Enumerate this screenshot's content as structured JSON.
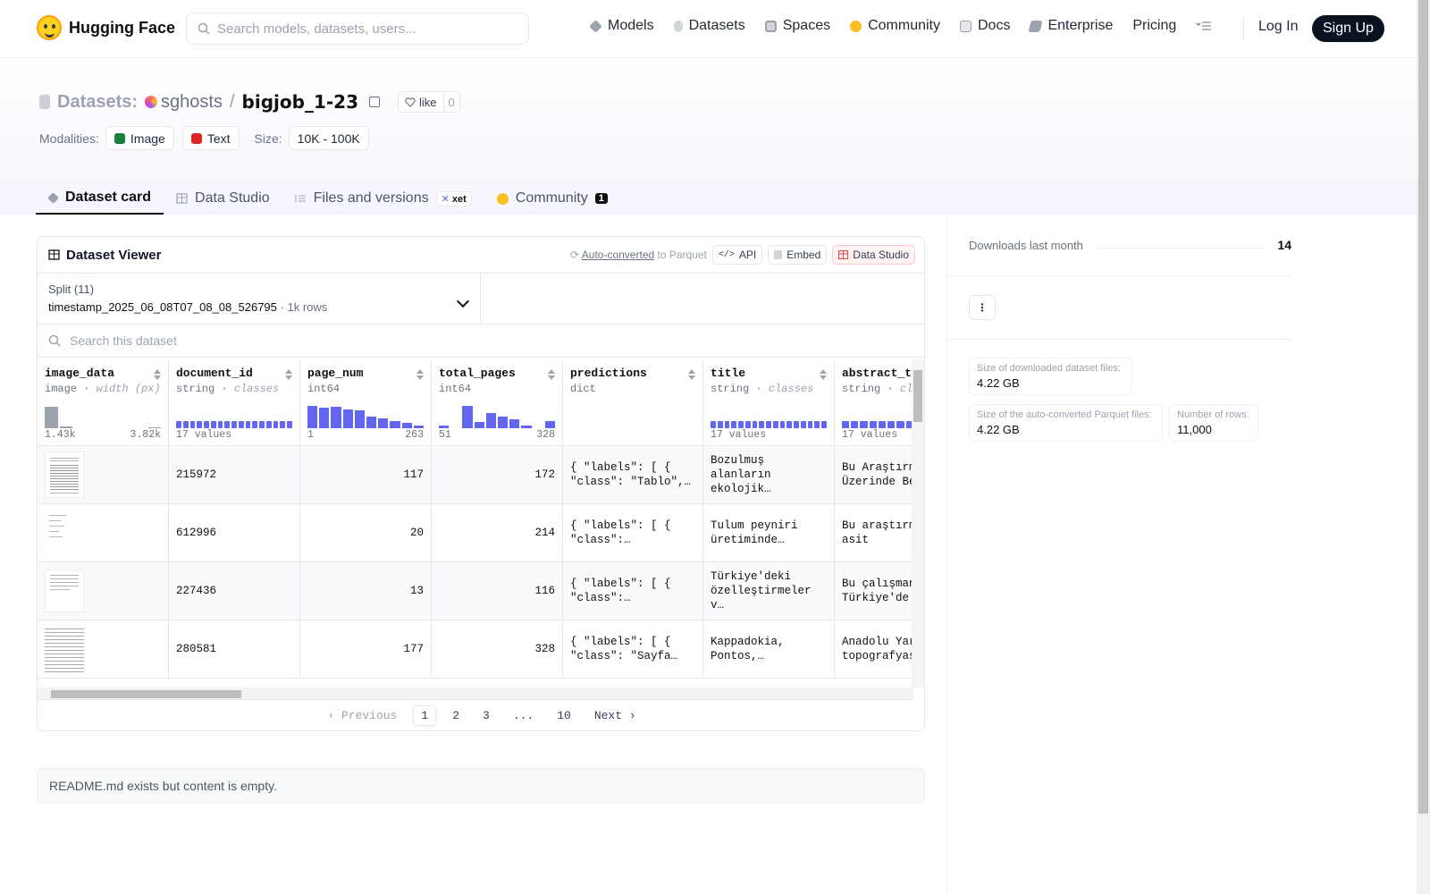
{
  "nav": {
    "brand": "Hugging Face",
    "search_placeholder": "Search models, datasets, users...",
    "links": [
      {
        "label": "Models",
        "icon": "models-icon",
        "color": "#9ca3af"
      },
      {
        "label": "Datasets",
        "icon": "datasets-icon",
        "color": "#d1d5db"
      },
      {
        "label": "Spaces",
        "icon": "spaces-icon",
        "color": "#d1d5db"
      },
      {
        "label": "Community",
        "icon": "community-icon",
        "color": "#fbbf24"
      },
      {
        "label": "Docs",
        "icon": "docs-icon",
        "color": "#d1d5db"
      },
      {
        "label": "Enterprise",
        "icon": "enterprise-icon",
        "color": "#9ca3af"
      },
      {
        "label": "Pricing",
        "icon": "",
        "color": ""
      }
    ],
    "login": "Log In",
    "signup": "Sign Up"
  },
  "header": {
    "section": "Datasets:",
    "user": "sghosts",
    "sep": "/",
    "name": "bigjob_1-23",
    "like_label": "like",
    "like_count": "0",
    "modalities_label": "Modalities:",
    "modalities": [
      {
        "label": "Image",
        "color": "#15803d"
      },
      {
        "label": "Text",
        "color": "#dc2626"
      }
    ],
    "size_label": "Size:",
    "size_value": "10K - 100K"
  },
  "tabs": [
    {
      "label": "Dataset card",
      "active": true
    },
    {
      "label": "Data Studio",
      "active": false
    },
    {
      "label": "Files and versions",
      "active": false,
      "badge": "xet"
    },
    {
      "label": "Community",
      "active": false,
      "count": "1"
    }
  ],
  "viewer": {
    "title": "Dataset Viewer",
    "auto_link": "Auto-converted",
    "auto_rest": "to Parquet",
    "api": "API",
    "embed": "Embed",
    "studio": "Data Studio",
    "split_label": "Split (11)",
    "split_value": "timestamp_2025_06_08T07_08_08_526795",
    "split_rows": "1k rows",
    "search_placeholder": "Search this dataset",
    "columns": [
      {
        "name": "image_data",
        "type": "image",
        "meta": "width (px)",
        "foot_left": "1.43k",
        "foot_right": "3.82k"
      },
      {
        "name": "document_id",
        "type": "string",
        "meta": "classes",
        "foot_left": "17 values",
        "foot_right": ""
      },
      {
        "name": "page_num",
        "type": "int64",
        "meta": "",
        "foot_left": "1",
        "foot_right": "263"
      },
      {
        "name": "total_pages",
        "type": "int64",
        "meta": "",
        "foot_left": "51",
        "foot_right": "328"
      },
      {
        "name": "predictions",
        "type": "dict",
        "meta": "",
        "foot_left": "",
        "foot_right": ""
      },
      {
        "name": "title",
        "type": "string",
        "meta": "classes",
        "foot_left": "17 values",
        "foot_right": ""
      },
      {
        "name": "abstract_tr",
        "type": "string",
        "meta": "cla",
        "foot_left": "17 values",
        "foot_right": ""
      }
    ],
    "rows": [
      {
        "document_id": "215972",
        "page_num": "117",
        "total_pages": "172",
        "predictions": "{ \"labels\": [ { \"class\": \"Tablo\",…",
        "title": "Bozulmuş alanların ekolojik…",
        "abstract_tr": "Bu Araştırm Üzerinde Be"
      },
      {
        "document_id": "612996",
        "page_num": "20",
        "total_pages": "214",
        "predictions": "{ \"labels\": [ { \"class\":…",
        "title": "Tulum peyniri üretiminde…",
        "abstract_tr": "Bu araştırm laktik asit"
      },
      {
        "document_id": "227436",
        "page_num": "13",
        "total_pages": "116",
        "predictions": "{ \"labels\": [ { \"class\":…",
        "title": "Türkiye'deki özelleştirmeler v…",
        "abstract_tr": "Bu çalışman Türkiye'de"
      },
      {
        "document_id": "280581",
        "page_num": "177",
        "total_pages": "328",
        "predictions": "{ \"labels\": [ { \"class\": \"Sayfa…",
        "title": "Kappadokia, Pontos,…",
        "abstract_tr": "Anadolu Yar topografyas"
      }
    ],
    "pager": {
      "prev": "Previous",
      "pages": [
        "1",
        "2",
        "3",
        "...",
        "10"
      ],
      "next": "Next",
      "current": "1"
    }
  },
  "readme": "README.md exists but content is empty.",
  "sidebar": {
    "downloads_label": "Downloads last month",
    "downloads_value": "14",
    "kebab": "⋮",
    "stats": [
      {
        "label": "Size of downloaded dataset files:",
        "value": "4.22 GB"
      },
      {
        "label": "Size of the auto-converted Parquet files:",
        "value": "4.22 GB"
      },
      {
        "label": "Number of rows:",
        "value": "11,000"
      }
    ]
  },
  "histograms": {
    "image_data": [
      0.85,
      0.08,
      0,
      0,
      0,
      0,
      0,
      0.04
    ],
    "page_num": [
      0.9,
      0.82,
      0.85,
      0.75,
      0.7,
      0.48,
      0.38,
      0.28,
      0.2,
      0.12
    ],
    "total_pages": [
      0.12,
      0,
      0.9,
      0.25,
      0.6,
      0.48,
      0.35,
      0.1,
      0,
      0.3
    ],
    "document_id_segments": 17,
    "title_segments": 17,
    "abstract_segments": 17
  }
}
